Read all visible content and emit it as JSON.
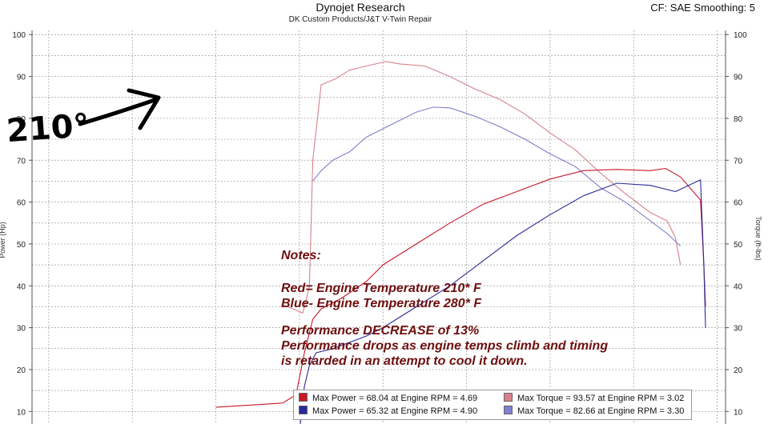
{
  "header": {
    "title": "Dynojet Research",
    "subtitle": "DK Custom Products/J&T V-Twin Repair",
    "settings": "CF: SAE Smoothing: 5"
  },
  "annotation": {
    "text": "210°"
  },
  "notes": {
    "heading": "Notes:",
    "line1": "Red= Engine Temperature 210* F",
    "line2": "Blue- Engine Temperature 280* F",
    "line3": "Performance DECREASE of 13%",
    "line4": "Performance drops as engine temps climb and timing",
    "line5": "is retarded in an attempt to cool it down."
  },
  "legend": {
    "red_power": "Max Power = 68.04 at Engine RPM = 4.69",
    "red_torque": "Max Torque = 93.57 at Engine RPM = 3.02",
    "blue_power": "Max Power = 65.32 at Engine RPM = 4.90",
    "blue_torque": "Max Torque = 82.66 at Engine RPM = 3.30"
  },
  "colors": {
    "red_power": "#c8182a",
    "red_torque": "#d8808a",
    "blue_power": "#2a2a9a",
    "blue_torque": "#7f7fcf",
    "grid": "#9a9a9a",
    "notes": "#6e0f0f"
  },
  "chart_data": {
    "type": "line",
    "ylabel": "Power (Hp)",
    "y2label": "Torque (ft-lbs)",
    "ylim": [
      7,
      101
    ],
    "xlim": [
      0.9,
      5.05
    ],
    "y_ticks": [
      10,
      20,
      30,
      40,
      50,
      60,
      70,
      80,
      90,
      100
    ],
    "grid": true,
    "legend_position": "bottom-right",
    "series": [
      {
        "key": "red_torque",
        "axis": "torque",
        "x": [
          2.4,
          2.52,
          2.56,
          2.58,
          2.63,
          2.72,
          2.8,
          2.9,
          3.02,
          3.1,
          3.25,
          3.4,
          3.55,
          3.7,
          3.85,
          4.0,
          4.15,
          4.3,
          4.45,
          4.6,
          4.7,
          4.75,
          4.78
        ],
        "y": [
          35.5,
          33.5,
          40.0,
          70.0,
          88.0,
          89.5,
          91.5,
          92.5,
          93.57,
          93.0,
          92.5,
          90.0,
          87.0,
          84.5,
          81.0,
          76.5,
          72.5,
          67.0,
          62.0,
          57.5,
          55.5,
          51.5,
          45.0
        ]
      },
      {
        "key": "blue_torque",
        "axis": "torque",
        "x": [
          2.58,
          2.63,
          2.7,
          2.8,
          2.9,
          3.0,
          3.1,
          3.2,
          3.3,
          3.4,
          3.55,
          3.7,
          3.85,
          4.0,
          4.15,
          4.3,
          4.45,
          4.6,
          4.7,
          4.78
        ],
        "y": [
          65.0,
          67.5,
          70.0,
          72.0,
          75.5,
          77.5,
          79.5,
          81.5,
          82.66,
          82.5,
          80.5,
          78.0,
          75.0,
          71.5,
          68.5,
          63.5,
          60.0,
          55.5,
          52.5,
          49.5
        ]
      },
      {
        "key": "red_power",
        "axis": "power",
        "x": [
          2.0,
          2.2,
          2.4,
          2.48,
          2.53,
          2.58,
          2.63,
          2.75,
          2.9,
          3.0,
          3.2,
          3.4,
          3.6,
          3.8,
          4.0,
          4.2,
          4.4,
          4.6,
          4.69,
          4.78,
          4.9,
          4.92,
          4.93
        ],
        "y": [
          11.0,
          11.5,
          12.0,
          14.0,
          24.0,
          32.0,
          34.5,
          37.0,
          41.0,
          45.0,
          50.0,
          55.0,
          59.5,
          62.5,
          65.5,
          67.5,
          67.8,
          67.5,
          68.04,
          66.0,
          60.5,
          45.0,
          35.0
        ]
      },
      {
        "key": "blue_power",
        "axis": "power",
        "x": [
          2.5,
          2.53,
          2.56,
          2.6,
          2.7,
          2.9,
          3.0,
          3.2,
          3.4,
          3.6,
          3.8,
          4.0,
          4.2,
          4.4,
          4.6,
          4.75,
          4.9,
          4.92,
          4.93
        ],
        "y": [
          5.0,
          16.0,
          21.0,
          24.0,
          25.0,
          28.0,
          30.0,
          35.0,
          40.0,
          46.0,
          52.0,
          57.0,
          61.5,
          64.5,
          64.0,
          62.5,
          65.32,
          45.0,
          30.0
        ]
      }
    ]
  }
}
